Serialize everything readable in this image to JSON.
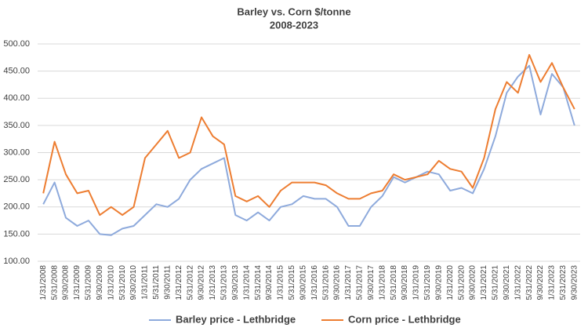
{
  "chart_data": {
    "type": "line",
    "title": "Barley vs. Corn $/tonne",
    "subtitle": "2008-2023",
    "categories": [
      "1/31/2008",
      "5/31/2008",
      "9/30/2008",
      "1/31/2009",
      "5/31/2009",
      "9/30/2009",
      "1/31/2010",
      "5/31/2010",
      "9/30/2010",
      "1/31/2011",
      "5/31/2011",
      "9/30/2011",
      "1/31/2012",
      "5/31/2012",
      "9/30/2012",
      "1/31/2013",
      "5/31/2013",
      "9/30/2013",
      "1/31/2014",
      "5/31/2014",
      "9/30/2014",
      "1/31/2015",
      "5/31/2015",
      "9/30/2015",
      "1/31/2016",
      "5/31/2016",
      "9/30/2016",
      "1/31/2017",
      "5/31/2017",
      "9/30/2017",
      "1/31/2018",
      "5/31/2018",
      "9/30/2018",
      "1/31/2019",
      "5/31/2019",
      "9/30/2019",
      "1/31/2020",
      "5/31/2020",
      "9/30/2020",
      "1/31/2021",
      "5/31/2021",
      "9/30/2021",
      "1/31/2022",
      "5/31/2022",
      "9/30/2022",
      "1/31/2023",
      "5/31/2023",
      "9/30/2023"
    ],
    "series": [
      {
        "name": "Barley price - Lethbridge",
        "color": "#8eaadc",
        "values": [
          205,
          245,
          180,
          165,
          175,
          150,
          148,
          160,
          165,
          185,
          205,
          200,
          215,
          250,
          270,
          280,
          290,
          185,
          175,
          190,
          175,
          200,
          205,
          220,
          215,
          215,
          200,
          165,
          165,
          200,
          220,
          255,
          245,
          255,
          265,
          260,
          230,
          235,
          225,
          270,
          330,
          410,
          440,
          460,
          370,
          445,
          420,
          350
        ]
      },
      {
        "name": "Corn price - Lethbridge",
        "color": "#ed7d31",
        "values": [
          225,
          320,
          260,
          225,
          230,
          185,
          200,
          185,
          200,
          290,
          315,
          340,
          290,
          300,
          365,
          330,
          315,
          220,
          210,
          220,
          200,
          230,
          245,
          245,
          245,
          240,
          225,
          215,
          215,
          225,
          230,
          260,
          250,
          255,
          260,
          285,
          270,
          265,
          235,
          290,
          380,
          430,
          410,
          480,
          430,
          465,
          420,
          380
        ]
      }
    ],
    "ylim": [
      100,
      500
    ],
    "yticks": [
      {
        "value": 100,
        "label": "100.00"
      },
      {
        "value": 150,
        "label": "150.00"
      },
      {
        "value": 200,
        "label": "200.00"
      },
      {
        "value": 250,
        "label": "250.00"
      },
      {
        "value": 300,
        "label": "300.00"
      },
      {
        "value": 350,
        "label": "350.00"
      },
      {
        "value": 400,
        "label": "400.00"
      },
      {
        "value": 450,
        "label": "450.00"
      },
      {
        "value": 500,
        "label": "500.00"
      }
    ],
    "grid": true,
    "legend": "bottom"
  }
}
